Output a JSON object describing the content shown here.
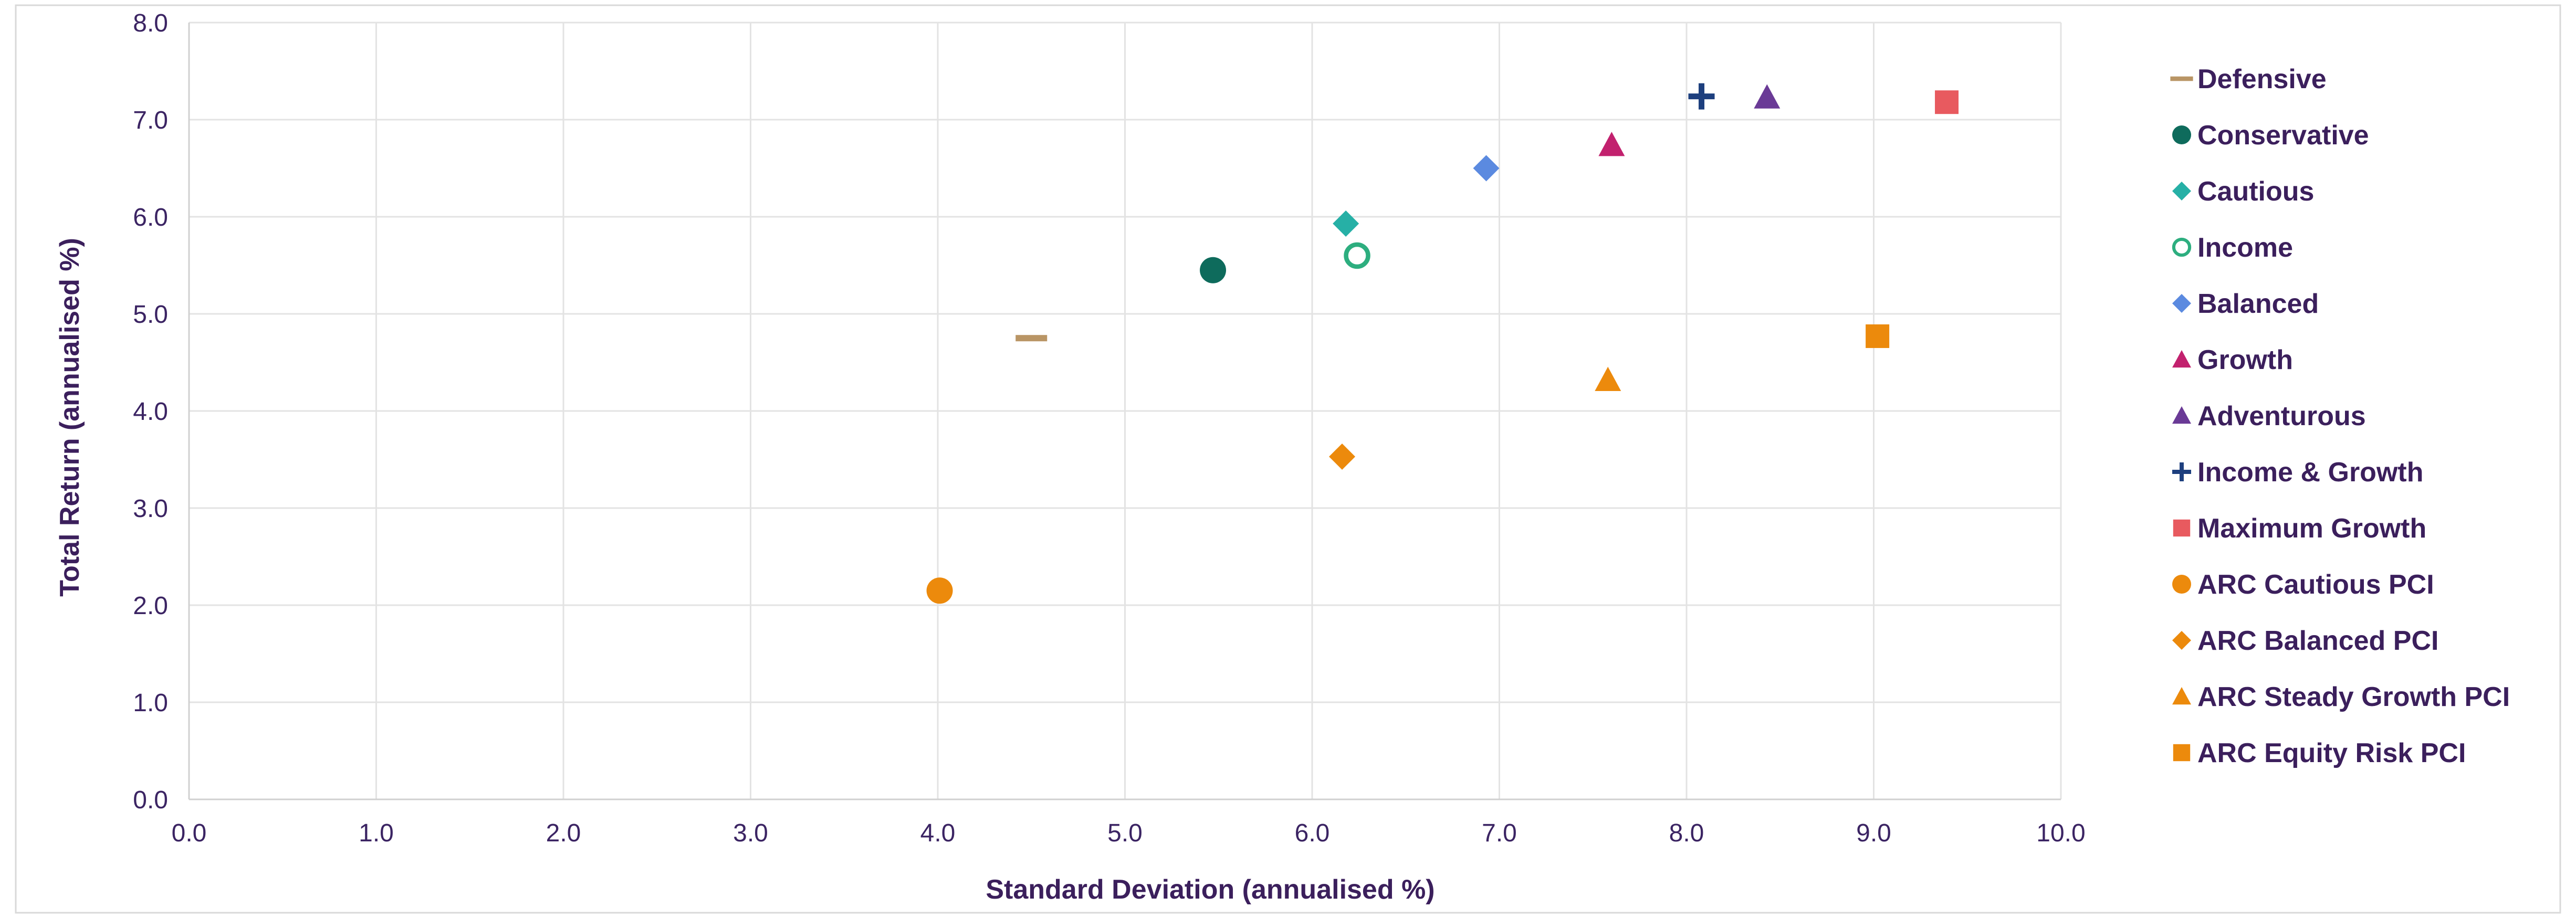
{
  "chart_data": {
    "type": "scatter",
    "title": "",
    "xlabel": "Standard Deviation (annualised %)",
    "ylabel": "Total Return (annualised %)",
    "xlim": [
      0,
      10
    ],
    "ylim": [
      0,
      8
    ],
    "x_ticks": [
      "0.0",
      "1.0",
      "2.0",
      "3.0",
      "4.0",
      "5.0",
      "6.0",
      "7.0",
      "8.0",
      "9.0",
      "10.0"
    ],
    "y_ticks": [
      "0.0",
      "1.0",
      "2.0",
      "3.0",
      "4.0",
      "5.0",
      "6.0",
      "7.0",
      "8.0"
    ],
    "grid": true,
    "legend_position": "right",
    "series": [
      {
        "name": "Defensive",
        "x": 4.5,
        "y": 4.75,
        "marker": "dash",
        "color": "#b99565"
      },
      {
        "name": "Conservative",
        "x": 5.47,
        "y": 5.45,
        "marker": "circle",
        "color": "#0e6b5c"
      },
      {
        "name": "Cautious",
        "x": 6.18,
        "y": 5.93,
        "marker": "diamond",
        "color": "#26b0a6"
      },
      {
        "name": "Income",
        "x": 6.24,
        "y": 5.6,
        "marker": "ring",
        "color": "#2dae7f"
      },
      {
        "name": "Balanced",
        "x": 6.93,
        "y": 6.5,
        "marker": "diamond",
        "color": "#5b8ae0"
      },
      {
        "name": "Growth",
        "x": 7.6,
        "y": 6.74,
        "marker": "triangle",
        "color": "#c2216e"
      },
      {
        "name": "Adventurous",
        "x": 8.43,
        "y": 7.23,
        "marker": "triangle",
        "color": "#6a3a96"
      },
      {
        "name": "Income & Growth",
        "x": 8.08,
        "y": 7.24,
        "marker": "plus",
        "color": "#1d3f7e"
      },
      {
        "name": "Maximum Growth",
        "x": 9.39,
        "y": 7.18,
        "marker": "square",
        "color": "#e85a5f"
      },
      {
        "name": "ARC Cautious PCI",
        "x": 4.01,
        "y": 2.15,
        "marker": "circle",
        "color": "#ec8a0c"
      },
      {
        "name": "ARC Balanced PCI",
        "x": 6.16,
        "y": 3.53,
        "marker": "diamond",
        "color": "#ec8a0c"
      },
      {
        "name": "ARC Steady Growth PCI",
        "x": 7.58,
        "y": 4.32,
        "marker": "triangle",
        "color": "#ec8a0c"
      },
      {
        "name": "ARC Equity Risk PCI",
        "x": 9.02,
        "y": 4.77,
        "marker": "square",
        "color": "#ec8a0c"
      }
    ]
  }
}
